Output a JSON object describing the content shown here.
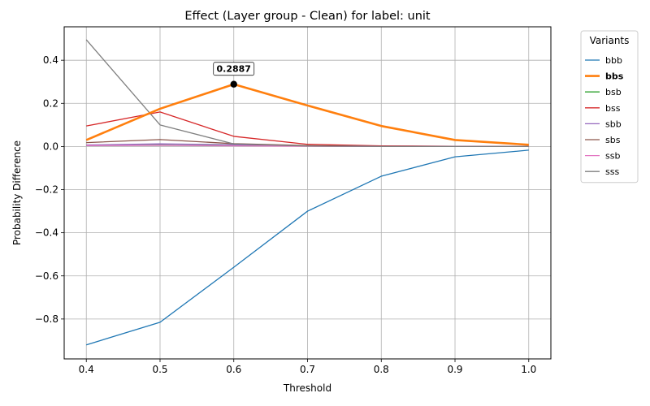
{
  "chart_data": {
    "type": "line",
    "title": "Effect (Layer group - Clean) for label: unit",
    "xlabel": "Threshold",
    "ylabel": "Probability Difference",
    "x": [
      0.4,
      0.5,
      0.6,
      0.7,
      0.8,
      0.9,
      1.0
    ],
    "xlim": [
      0.37,
      1.03
    ],
    "ylim": [
      -0.985,
      0.555
    ],
    "xticks": [
      "0.4",
      "0.5",
      "0.6",
      "0.7",
      "0.8",
      "0.9",
      "1.0"
    ],
    "xtick_values": [
      0.4,
      0.5,
      0.6,
      0.7,
      0.8,
      0.9,
      1.0
    ],
    "yticks": [
      "−0.8",
      "−0.6",
      "−0.4",
      "−0.2",
      "0.0",
      "0.2",
      "0.4"
    ],
    "ytick_values": [
      -0.8,
      -0.6,
      -0.4,
      -0.2,
      0.0,
      0.2,
      0.4
    ],
    "grid": true,
    "legend": {
      "title": "Variants",
      "placement": "outside-top-right",
      "highlight": "bbs"
    },
    "series": [
      {
        "name": "bbb",
        "color": "#1f77b4",
        "values": [
          -0.92,
          -0.815,
          -0.56,
          -0.3,
          -0.138,
          -0.048,
          -0.017
        ],
        "highlight": false
      },
      {
        "name": "bbs",
        "color": "#ff7f0e",
        "values": [
          0.03,
          0.175,
          0.2887,
          0.19,
          0.095,
          0.03,
          0.008
        ],
        "highlight": true
      },
      {
        "name": "bsb",
        "color": "#2ca02c",
        "values": [
          0.005,
          0.006,
          0.004,
          0.002,
          0.001,
          0.001,
          0.0
        ],
        "highlight": false
      },
      {
        "name": "bss",
        "color": "#d62728",
        "values": [
          0.095,
          0.16,
          0.047,
          0.01,
          0.003,
          0.001,
          0.0
        ],
        "highlight": false
      },
      {
        "name": "sbb",
        "color": "#9467bd",
        "values": [
          0.007,
          0.012,
          0.008,
          0.003,
          0.001,
          0.0,
          0.0
        ],
        "highlight": false
      },
      {
        "name": "sbs",
        "color": "#8c564b",
        "values": [
          0.018,
          0.032,
          0.013,
          0.004,
          0.001,
          0.0,
          0.0
        ],
        "highlight": false
      },
      {
        "name": "ssb",
        "color": "#e377c2",
        "values": [
          0.004,
          0.005,
          0.003,
          0.001,
          0.0,
          0.0,
          0.0
        ],
        "highlight": false
      },
      {
        "name": "sss",
        "color": "#7f7f7f",
        "values": [
          0.495,
          0.1,
          0.012,
          0.002,
          0.0,
          0.0,
          0.0
        ],
        "highlight": false
      }
    ],
    "annotations": [
      {
        "text": "0.2887",
        "x": 0.6,
        "y": 0.2887,
        "series": "bbs"
      }
    ]
  }
}
